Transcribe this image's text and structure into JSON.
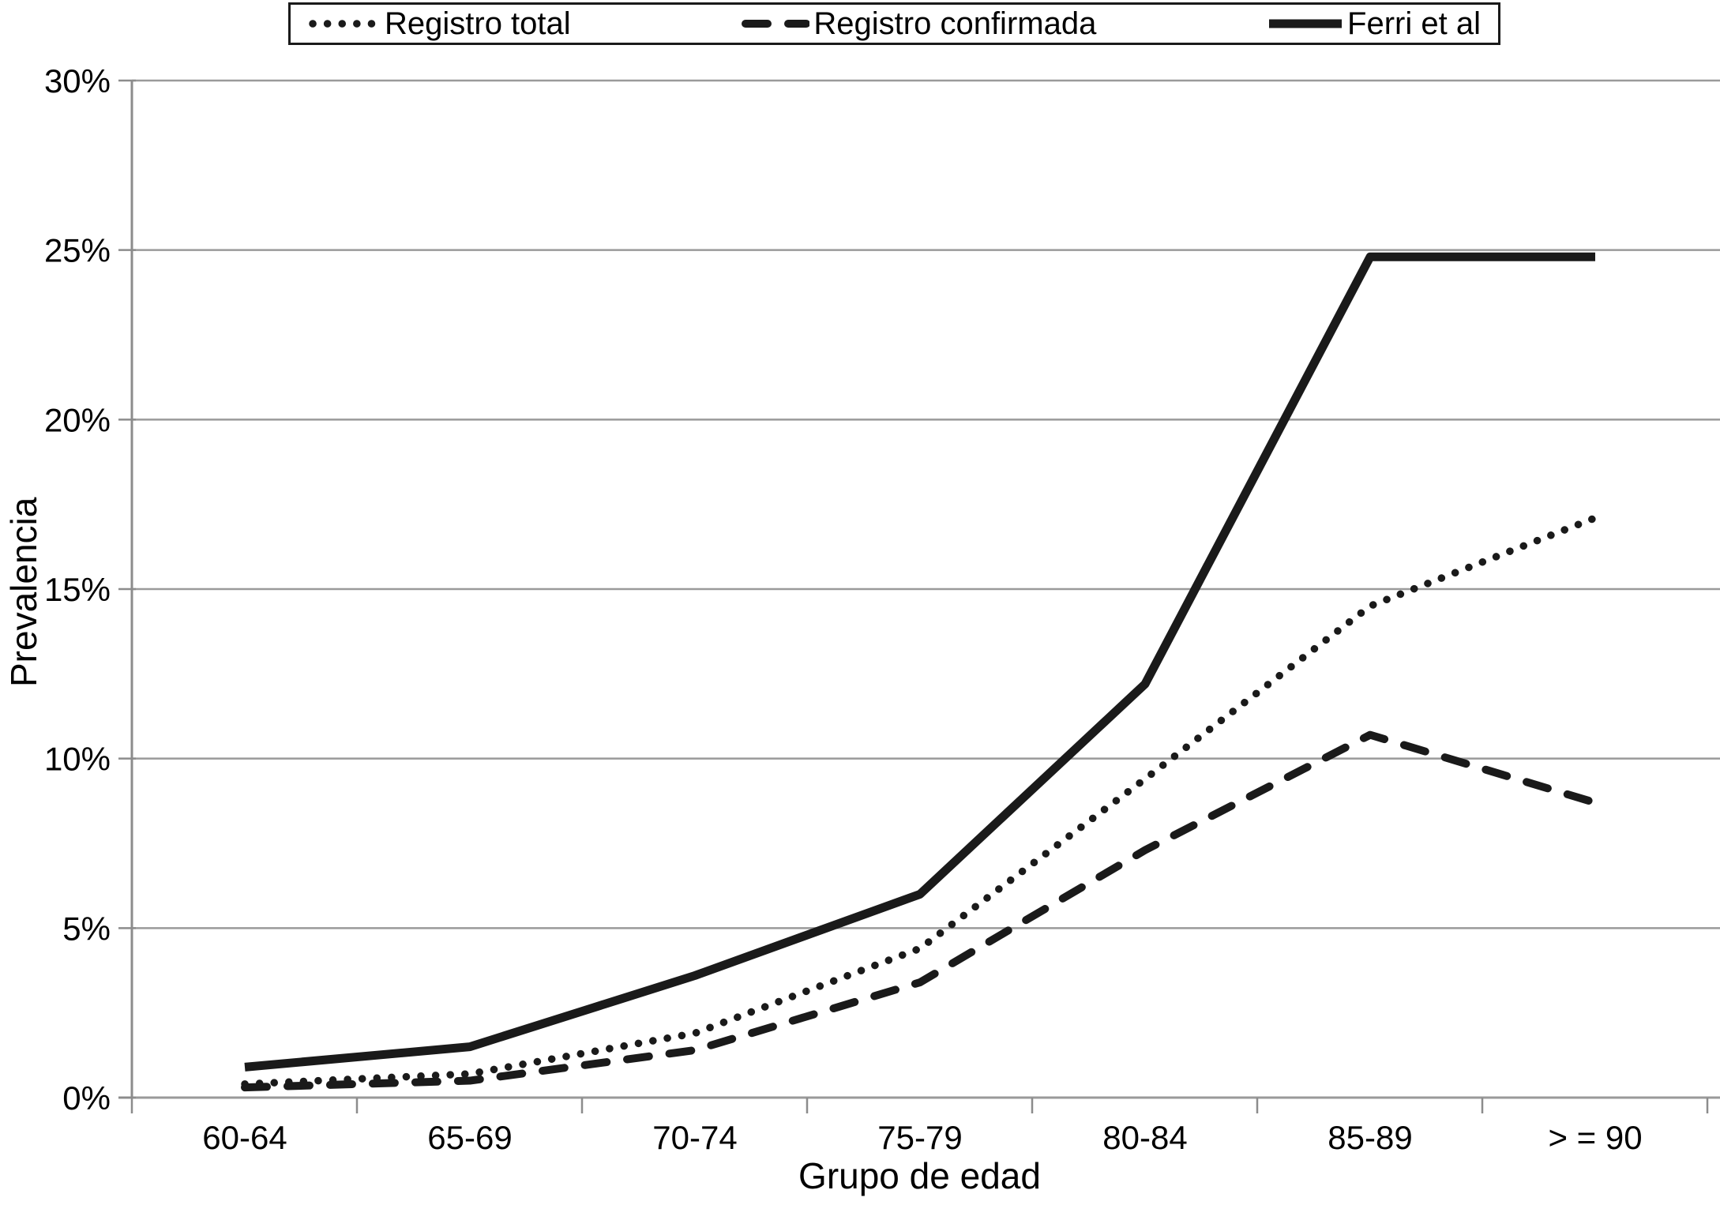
{
  "chart_data": {
    "type": "line",
    "title": "",
    "xlabel": "Grupo de edad",
    "ylabel": "Prevalencia",
    "categories": [
      "60-64",
      "65-69",
      "70-74",
      "75-79",
      "80-84",
      "85-89",
      "> = 90"
    ],
    "y_tick_labels": [
      "0%",
      "5%",
      "10%",
      "15%",
      "20%",
      "25%",
      "30%"
    ],
    "ylim": [
      0,
      30
    ],
    "grid": "horizontal-gray",
    "legend_position": "top",
    "series": [
      {
        "name": "Registro total",
        "style": "dotted",
        "values": [
          0.4,
          0.7,
          1.9,
          4.4,
          9.4,
          14.5,
          17.1
        ]
      },
      {
        "name": "Registro confirmada",
        "style": "dashed",
        "values": [
          0.3,
          0.5,
          1.4,
          3.4,
          7.3,
          10.7,
          8.7
        ]
      },
      {
        "name": "Ferri et al",
        "style": "solid",
        "values": [
          0.9,
          1.5,
          3.6,
          6.0,
          12.2,
          24.8,
          24.8
        ]
      }
    ],
    "colors": {
      "line": "#1a1a1a",
      "grid": "#9a9a9a",
      "axis": "#8c8c8c",
      "text": "#000000"
    }
  }
}
